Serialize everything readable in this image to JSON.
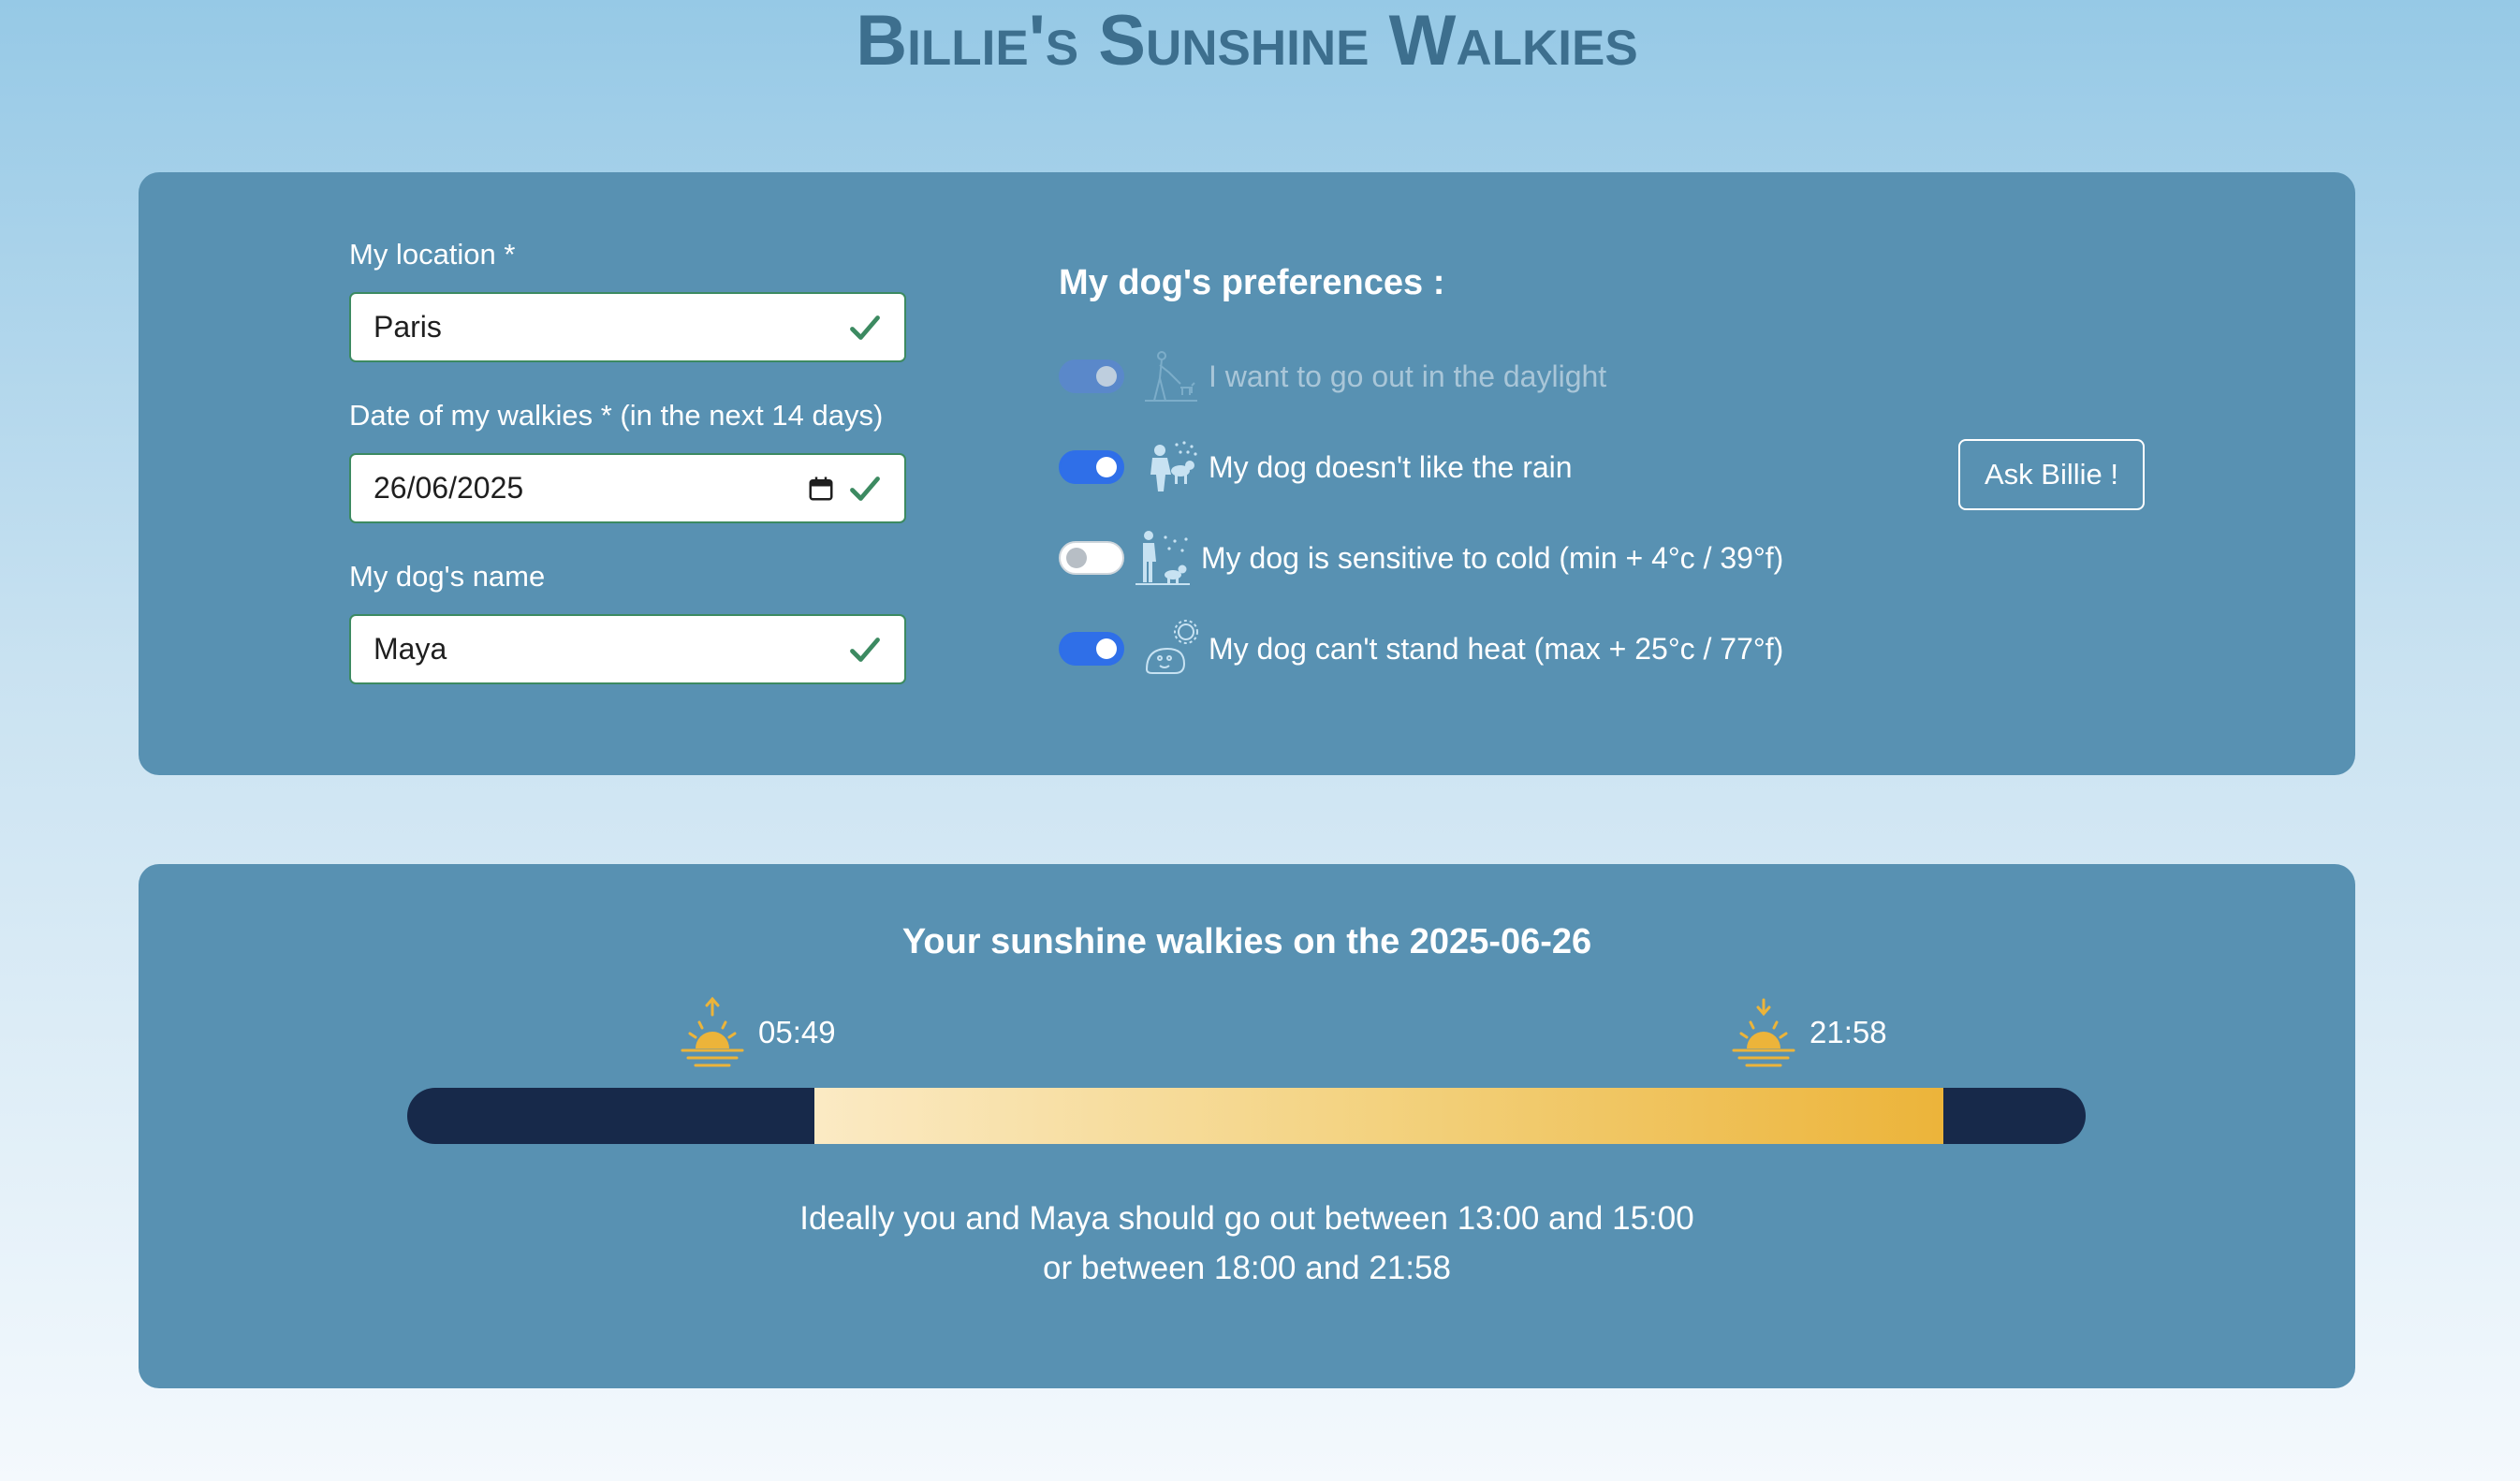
{
  "app": {
    "title": "Billie's Sunshine Walkies"
  },
  "form": {
    "location": {
      "label": "My location *",
      "value": "Paris",
      "valid": true
    },
    "date": {
      "label": "Date of my walkies * (in the next 14 days)",
      "value": "26/06/2025",
      "valid": true
    },
    "dog_name": {
      "label": "My dog's name",
      "value": "Maya",
      "valid": true
    }
  },
  "preferences": {
    "title": "My dog's preferences :",
    "items": [
      {
        "label": "I want to go out in the daylight",
        "checked": true,
        "disabled": true,
        "icon": "person-walking-dog-icon"
      },
      {
        "label": "My dog doesn't like the rain",
        "checked": true,
        "disabled": false,
        "icon": "dog-rain-icon"
      },
      {
        "label": "My dog is sensitive to cold (min + 4°c / 39°f)",
        "checked": false,
        "disabled": false,
        "icon": "dog-cold-icon"
      },
      {
        "label": "My dog can't stand heat (max + 25°c / 77°f)",
        "checked": true,
        "disabled": false,
        "icon": "dog-heat-icon"
      }
    ]
  },
  "ask_button": {
    "label": "Ask Billie !"
  },
  "result": {
    "title": "Your sunshine walkies on the 2025-06-26",
    "sunrise": "05:49",
    "sunset": "21:58",
    "advice_line1": "Ideally you and Maya should go out between 13:00 and 15:00",
    "advice_line2": "or between 18:00 and 21:58"
  },
  "colors": {
    "panel": "#5891b2",
    "title": "#3d6f8e",
    "toggle_on": "#2f6fe8",
    "valid": "#3c8a61",
    "night": "#17294a",
    "sun": "#ecb43a"
  }
}
